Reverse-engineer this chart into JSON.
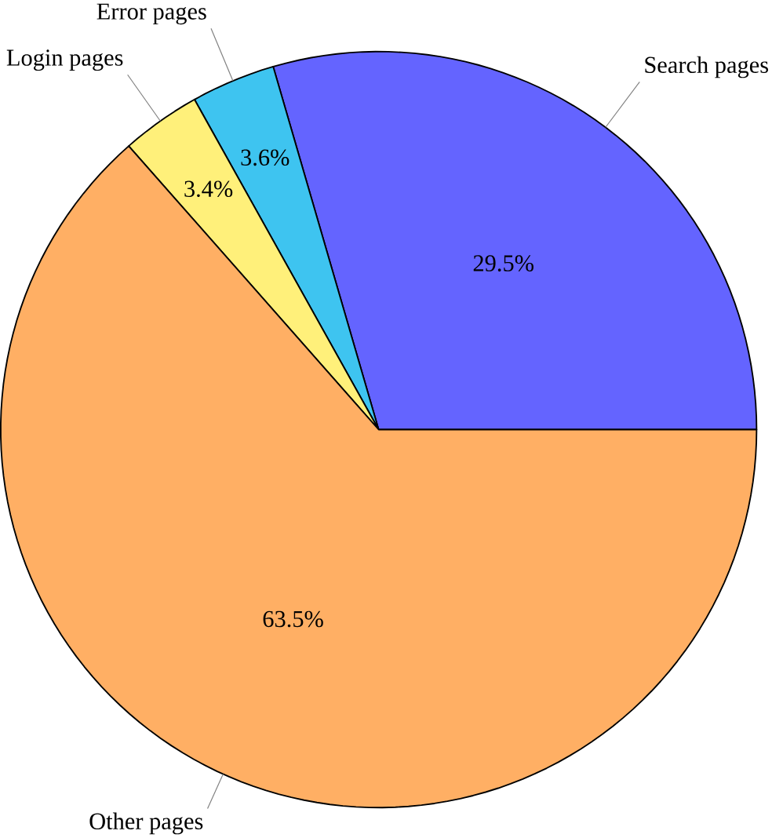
{
  "chart_data": {
    "type": "pie",
    "categories": [
      "Search pages",
      "Error pages",
      "Login pages",
      "Other pages"
    ],
    "values": [
      29.5,
      3.6,
      3.4,
      63.5
    ],
    "colors": [
      "#6464ff",
      "#3ec4f0",
      "#fff07a",
      "#ffaf64"
    ],
    "value_labels": [
      "29.5%",
      "3.6%",
      "3.4%",
      "63.5%"
    ]
  }
}
